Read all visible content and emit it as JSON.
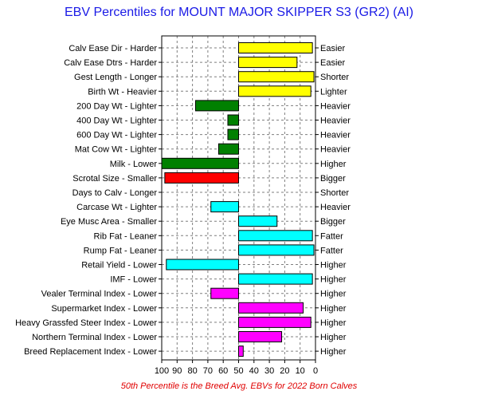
{
  "chart_data": {
    "type": "bar",
    "title": "EBV Percentiles for MOUNT MAJOR SKIPPER S3 (GR2) (AI)",
    "footnote": "50th Percentile is the Breed Avg. EBVs for 2022 Born Calves",
    "x_ticks": [
      "100",
      "90",
      "80",
      "70",
      "60",
      "50",
      "40",
      "30",
      "20",
      "10",
      "0"
    ],
    "xlim": [
      100,
      0
    ],
    "baseline": 50,
    "grid": true,
    "colors": {
      "yellow": "#ffff00",
      "green": "#008000",
      "red": "#ff0000",
      "cyan": "#00ffff",
      "magenta": "#ff00ff"
    },
    "traits": [
      {
        "left_label": "Calv Ease Dir - Harder",
        "right_label": "Easier",
        "percentile": 2,
        "color": "yellow"
      },
      {
        "left_label": "Calv Ease Dtrs - Harder",
        "right_label": "Easier",
        "percentile": 12,
        "color": "yellow"
      },
      {
        "left_label": "Gest Length - Longer",
        "right_label": "Shorter",
        "percentile": 1,
        "color": "yellow"
      },
      {
        "left_label": "Birth Wt - Heavier",
        "right_label": "Lighter",
        "percentile": 3,
        "color": "yellow"
      },
      {
        "left_label": "200 Day Wt - Lighter",
        "right_label": "Heavier",
        "percentile": 78,
        "color": "green"
      },
      {
        "left_label": "400 Day Wt - Lighter",
        "right_label": "Heavier",
        "percentile": 57,
        "color": "green"
      },
      {
        "left_label": "600 Day Wt - Lighter",
        "right_label": "Heavier",
        "percentile": 57,
        "color": "green"
      },
      {
        "left_label": "Mat Cow Wt - Lighter",
        "right_label": "Heavier",
        "percentile": 63,
        "color": "green"
      },
      {
        "left_label": "Milk - Lower",
        "right_label": "Higher",
        "percentile": 100,
        "color": "green"
      },
      {
        "left_label": "Scrotal Size - Smaller",
        "right_label": "Bigger",
        "percentile": 98,
        "color": "red"
      },
      {
        "left_label": "Days to Calv - Longer",
        "right_label": "Shorter",
        "percentile": null,
        "color": "none"
      },
      {
        "left_label": "Carcase Wt - Lighter",
        "right_label": "Heavier",
        "percentile": 68,
        "color": "cyan"
      },
      {
        "left_label": "Eye Musc Area - Smaller",
        "right_label": "Bigger",
        "percentile": 25,
        "color": "cyan"
      },
      {
        "left_label": "Rib Fat - Leaner",
        "right_label": "Fatter",
        "percentile": 2,
        "color": "cyan"
      },
      {
        "left_label": "Rump Fat - Leaner",
        "right_label": "Fatter",
        "percentile": 1,
        "color": "cyan"
      },
      {
        "left_label": "Retail Yield - Lower",
        "right_label": "Higher",
        "percentile": 97,
        "color": "cyan"
      },
      {
        "left_label": "IMF - Lower",
        "right_label": "Higher",
        "percentile": 2,
        "color": "cyan"
      },
      {
        "left_label": "Vealer Terminal Index - Lower",
        "right_label": "Higher",
        "percentile": 68,
        "color": "magenta"
      },
      {
        "left_label": "Supermarket Index - Lower",
        "right_label": "Higher",
        "percentile": 8,
        "color": "magenta"
      },
      {
        "left_label": "Heavy Grassfed Steer Index - Lower",
        "right_label": "Higher",
        "percentile": 3,
        "color": "magenta"
      },
      {
        "left_label": "Northern Terminal Index - Lower",
        "right_label": "Higher",
        "percentile": 22,
        "color": "magenta"
      },
      {
        "left_label": "Breed Replacement Index - Lower",
        "right_label": "Higher",
        "percentile": 47,
        "color": "magenta"
      }
    ]
  }
}
